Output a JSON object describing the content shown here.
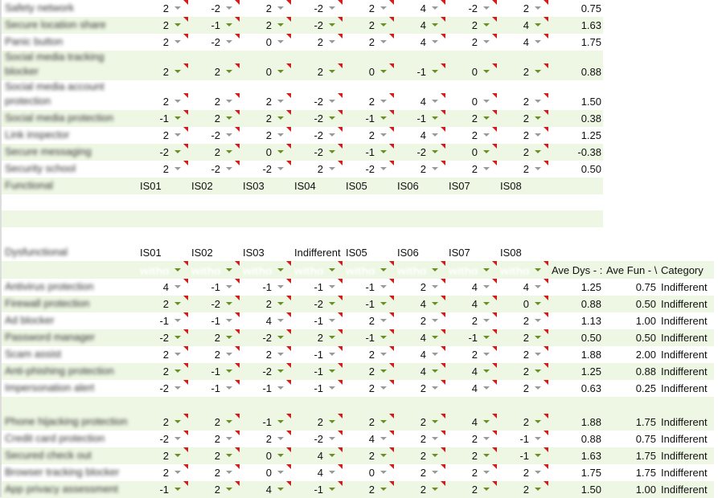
{
  "functional_table": {
    "rows": [
      {
        "label": "Safety network",
        "values": [
          2,
          -2,
          2,
          -2,
          2,
          4,
          -2,
          2
        ],
        "average": "0.75"
      },
      {
        "label": "Secure location share",
        "values": [
          2,
          -1,
          2,
          -2,
          2,
          4,
          2,
          4
        ],
        "average": "1.63"
      },
      {
        "label": "Panic button",
        "values": [
          2,
          -2,
          0,
          2,
          2,
          4,
          2,
          4
        ],
        "average": "1.75"
      },
      {
        "label": "Social media tracking blocker",
        "values": [
          2,
          2,
          0,
          2,
          0,
          -1,
          0,
          2
        ],
        "average": "0.88"
      },
      {
        "label": "Social media account protection",
        "values": [
          2,
          2,
          2,
          -2,
          2,
          4,
          0,
          2
        ],
        "average": "1.50"
      },
      {
        "label": "Social media protection",
        "values": [
          -1,
          2,
          2,
          -2,
          -1,
          -1,
          2,
          2
        ],
        "average": "0.38"
      },
      {
        "label": "Link inspector",
        "values": [
          2,
          -2,
          2,
          -2,
          2,
          4,
          2,
          2
        ],
        "average": "1.25"
      },
      {
        "label": "Secure messaging",
        "values": [
          -2,
          2,
          0,
          -2,
          -1,
          -2,
          0,
          2
        ],
        "average": "-0.38"
      },
      {
        "label": "Security school",
        "values": [
          2,
          -2,
          -2,
          2,
          -2,
          2,
          2,
          2
        ],
        "average": "0.50"
      }
    ],
    "footer_label": "Functional",
    "footer_headers": [
      "IS01",
      "IS02",
      "IS03",
      "IS04",
      "IS05",
      "IS06",
      "IS07",
      "IS08"
    ]
  },
  "dysfunctional_table": {
    "title": "Dysfunctional",
    "headers": [
      "IS01",
      "IS02",
      "IS03",
      "Indifferent",
      "IS05",
      "IS06",
      "IS07",
      "IS08"
    ],
    "filter_label": "witho",
    "extra_headers": [
      "Ave Dys - :",
      "Ave Fun - \\",
      "Category"
    ],
    "rows": [
      {
        "label": "Antivirus protection",
        "values": [
          4,
          -1,
          -1,
          -1,
          -1,
          2,
          4,
          4
        ],
        "ave_dys": "1.25",
        "ave_fun": "0.75",
        "category": "Indifferent"
      },
      {
        "label": "Firewall protection",
        "values": [
          2,
          -2,
          2,
          -2,
          -1,
          4,
          4,
          0
        ],
        "ave_dys": "0.88",
        "ave_fun": "0.50",
        "category": "Indifferent"
      },
      {
        "label": "Ad blocker",
        "values": [
          -1,
          -1,
          4,
          -1,
          2,
          2,
          2,
          2
        ],
        "ave_dys": "1.13",
        "ave_fun": "1.00",
        "category": "Indifferent"
      },
      {
        "label": "Password manager",
        "values": [
          -2,
          2,
          -2,
          2,
          -1,
          4,
          -1,
          2
        ],
        "ave_dys": "0.50",
        "ave_fun": "0.50",
        "category": "Indifferent"
      },
      {
        "label": "Scam assist",
        "values": [
          2,
          2,
          2,
          -1,
          2,
          4,
          2,
          2
        ],
        "ave_dys": "1.88",
        "ave_fun": "2.00",
        "category": "Indifferent"
      },
      {
        "label": "Anti-phishing protection",
        "values": [
          2,
          -1,
          -2,
          -1,
          2,
          4,
          4,
          2
        ],
        "ave_dys": "1.25",
        "ave_fun": "0.88",
        "category": "Indifferent"
      },
      {
        "label": "Impersonation alert",
        "values": [
          -2,
          -1,
          -1,
          -1,
          2,
          2,
          4,
          2
        ],
        "ave_dys": "0.63",
        "ave_fun": "0.25",
        "category": "Indifferent"
      },
      {
        "label": "Phone hijacking protection",
        "values": [
          2,
          2,
          -1,
          2,
          2,
          2,
          4,
          2
        ],
        "ave_dys": "1.88",
        "ave_fun": "1.75",
        "category": "Indifferent"
      },
      {
        "label": "Credit card protection",
        "values": [
          -2,
          2,
          2,
          -2,
          4,
          2,
          2,
          -1
        ],
        "ave_dys": "0.88",
        "ave_fun": "0.75",
        "category": "Indifferent"
      },
      {
        "label": "Secured check out",
        "values": [
          2,
          2,
          0,
          4,
          2,
          2,
          2,
          -1
        ],
        "ave_dys": "1.63",
        "ave_fun": "1.75",
        "category": "Indifferent"
      },
      {
        "label": "Browser tracking blocker",
        "values": [
          2,
          2,
          0,
          4,
          0,
          2,
          2,
          2
        ],
        "ave_dys": "1.75",
        "ave_fun": "1.75",
        "category": "Indifferent"
      },
      {
        "label": "App privacy assessment",
        "values": [
          -1,
          2,
          4,
          -1,
          2,
          2,
          2,
          2
        ],
        "ave_dys": "1.50",
        "ave_fun": "1.00",
        "category": "Indifferent"
      }
    ]
  },
  "colors": {
    "row_alt": "#eef7e4",
    "comment_marker": "#d31b1b",
    "arrow_green": "#6b8e23",
    "arrow_gray": "#999999"
  }
}
